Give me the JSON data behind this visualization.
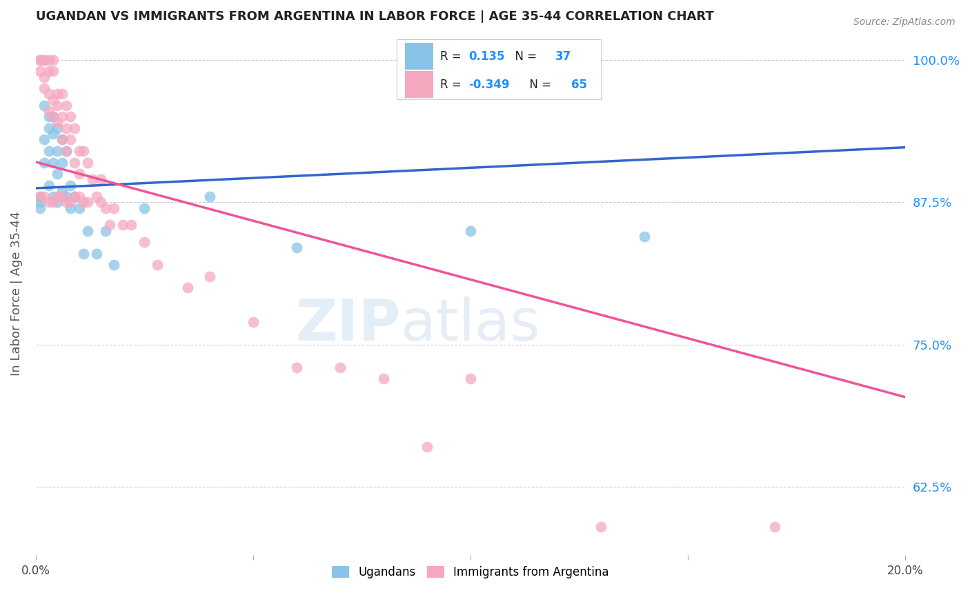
{
  "title": "UGANDAN VS IMMIGRANTS FROM ARGENTINA IN LABOR FORCE | AGE 35-44 CORRELATION CHART",
  "source": "Source: ZipAtlas.com",
  "ylabel": "In Labor Force | Age 35-44",
  "ytick_labels": [
    "62.5%",
    "75.0%",
    "87.5%",
    "100.0%"
  ],
  "ytick_values": [
    0.625,
    0.75,
    0.875,
    1.0
  ],
  "xlim": [
    0.0,
    0.2
  ],
  "ylim": [
    0.565,
    1.025
  ],
  "watermark_zip": "ZIP",
  "watermark_atlas": "atlas",
  "legend_R1": "0.135",
  "legend_N1": "37",
  "legend_R2": "-0.349",
  "legend_N2": "65",
  "ugandan_color": "#89C4E8",
  "argentina_color": "#F5A8BE",
  "line_blue": "#3366CC",
  "line_pink": "#EE5599",
  "ugandan_x": [
    0.001,
    0.001,
    0.001,
    0.002,
    0.002,
    0.002,
    0.003,
    0.003,
    0.003,
    0.003,
    0.004,
    0.004,
    0.004,
    0.004,
    0.005,
    0.005,
    0.005,
    0.005,
    0.006,
    0.006,
    0.006,
    0.007,
    0.007,
    0.008,
    0.008,
    0.009,
    0.01,
    0.011,
    0.012,
    0.014,
    0.016,
    0.018,
    0.025,
    0.04,
    0.06,
    0.1,
    0.14
  ],
  "ugandan_y": [
    0.88,
    0.875,
    0.87,
    0.96,
    0.93,
    0.91,
    0.95,
    0.94,
    0.92,
    0.89,
    0.95,
    0.935,
    0.91,
    0.88,
    0.94,
    0.92,
    0.9,
    0.875,
    0.93,
    0.91,
    0.885,
    0.92,
    0.88,
    0.89,
    0.87,
    0.88,
    0.87,
    0.83,
    0.85,
    0.83,
    0.85,
    0.82,
    0.87,
    0.88,
    0.835,
    0.85,
    0.845
  ],
  "argentina_x": [
    0.001,
    0.001,
    0.001,
    0.001,
    0.002,
    0.002,
    0.002,
    0.002,
    0.002,
    0.003,
    0.003,
    0.003,
    0.003,
    0.003,
    0.004,
    0.004,
    0.004,
    0.004,
    0.004,
    0.005,
    0.005,
    0.005,
    0.005,
    0.006,
    0.006,
    0.006,
    0.006,
    0.007,
    0.007,
    0.007,
    0.007,
    0.008,
    0.008,
    0.008,
    0.009,
    0.009,
    0.009,
    0.01,
    0.01,
    0.01,
    0.011,
    0.011,
    0.012,
    0.012,
    0.013,
    0.014,
    0.015,
    0.015,
    0.016,
    0.017,
    0.018,
    0.02,
    0.022,
    0.025,
    0.028,
    0.035,
    0.04,
    0.05,
    0.06,
    0.07,
    0.08,
    0.09,
    0.1,
    0.13,
    0.17
  ],
  "argentina_y": [
    1.0,
    1.0,
    0.99,
    0.88,
    1.0,
    1.0,
    0.985,
    0.975,
    0.88,
    1.0,
    0.99,
    0.97,
    0.955,
    0.875,
    1.0,
    0.99,
    0.965,
    0.95,
    0.875,
    0.97,
    0.96,
    0.945,
    0.88,
    0.97,
    0.95,
    0.93,
    0.88,
    0.96,
    0.94,
    0.92,
    0.875,
    0.95,
    0.93,
    0.875,
    0.94,
    0.91,
    0.88,
    0.92,
    0.9,
    0.88,
    0.92,
    0.875,
    0.91,
    0.875,
    0.895,
    0.88,
    0.895,
    0.875,
    0.87,
    0.855,
    0.87,
    0.855,
    0.855,
    0.84,
    0.82,
    0.8,
    0.81,
    0.77,
    0.73,
    0.73,
    0.72,
    0.66,
    0.72,
    0.59,
    0.59
  ]
}
